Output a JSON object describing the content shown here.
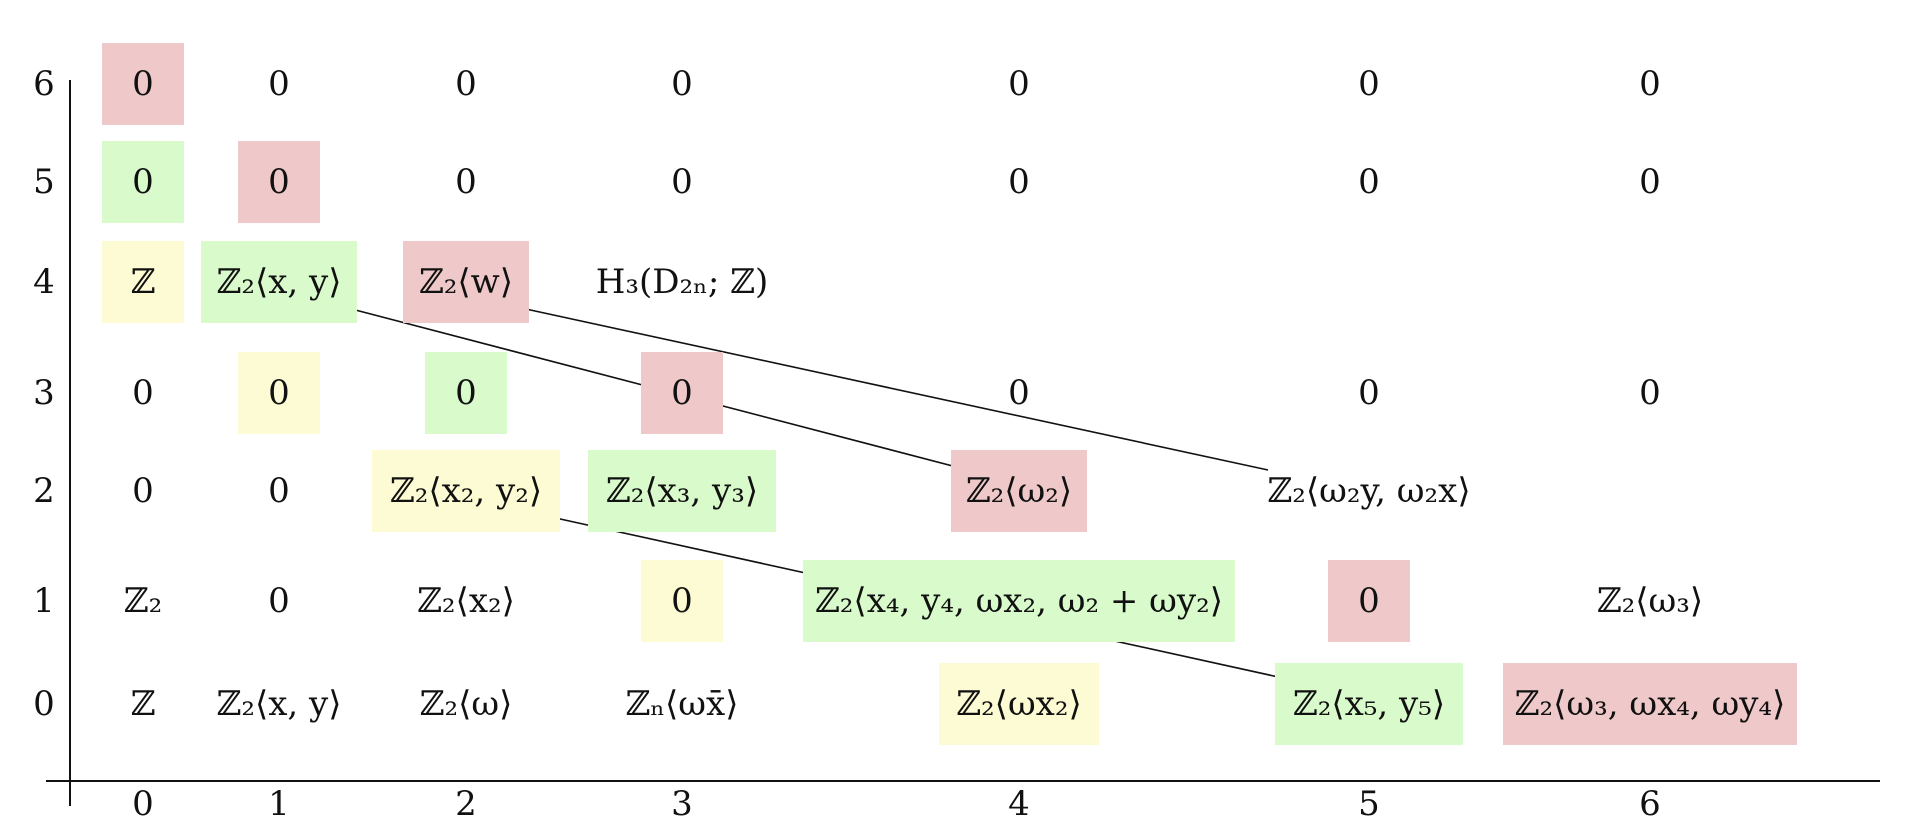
{
  "axes": {
    "row_labels": [
      "0",
      "1",
      "2",
      "3",
      "4",
      "5",
      "6"
    ],
    "col_labels": [
      "0",
      "1",
      "2",
      "3",
      "4",
      "5",
      "6"
    ]
  },
  "colors": {
    "red": "#efc9c9",
    "green": "#d9fbcc",
    "yellow": "#fdfbd3"
  },
  "entries": [
    {
      "row": 6,
      "col": 0,
      "text": "0",
      "color": "red"
    },
    {
      "row": 6,
      "col": 1,
      "text": "0",
      "color": "none"
    },
    {
      "row": 6,
      "col": 2,
      "text": "0",
      "color": "none"
    },
    {
      "row": 6,
      "col": 3,
      "text": "0",
      "color": "none"
    },
    {
      "row": 6,
      "col": 4,
      "text": "0",
      "color": "none"
    },
    {
      "row": 6,
      "col": 5,
      "text": "0",
      "color": "none"
    },
    {
      "row": 6,
      "col": 6,
      "text": "0",
      "color": "none"
    },
    {
      "row": 5,
      "col": 0,
      "text": "0",
      "color": "green"
    },
    {
      "row": 5,
      "col": 1,
      "text": "0",
      "color": "red"
    },
    {
      "row": 5,
      "col": 2,
      "text": "0",
      "color": "none"
    },
    {
      "row": 5,
      "col": 3,
      "text": "0",
      "color": "none"
    },
    {
      "row": 5,
      "col": 4,
      "text": "0",
      "color": "none"
    },
    {
      "row": 5,
      "col": 5,
      "text": "0",
      "color": "none"
    },
    {
      "row": 5,
      "col": 6,
      "text": "0",
      "color": "none"
    },
    {
      "row": 4,
      "col": 0,
      "text": "ℤ",
      "color": "yellow"
    },
    {
      "row": 4,
      "col": 1,
      "text": "ℤ₂⟨x, y⟩",
      "color": "green"
    },
    {
      "row": 4,
      "col": 2,
      "text": "ℤ₂⟨w⟩",
      "color": "red"
    },
    {
      "row": 4,
      "col": 3,
      "text": "H₃(D₂ₙ; ℤ)",
      "color": "none"
    },
    {
      "row": 3,
      "col": 0,
      "text": "0",
      "color": "none"
    },
    {
      "row": 3,
      "col": 1,
      "text": "0",
      "color": "yellow"
    },
    {
      "row": 3,
      "col": 2,
      "text": "0",
      "color": "green"
    },
    {
      "row": 3,
      "col": 3,
      "text": "0",
      "color": "red"
    },
    {
      "row": 3,
      "col": 4,
      "text": "0",
      "color": "none"
    },
    {
      "row": 3,
      "col": 5,
      "text": "0",
      "color": "none"
    },
    {
      "row": 3,
      "col": 6,
      "text": "0",
      "color": "none"
    },
    {
      "row": 2,
      "col": 0,
      "text": "0",
      "color": "none"
    },
    {
      "row": 2,
      "col": 1,
      "text": "0",
      "color": "none"
    },
    {
      "row": 2,
      "col": 2,
      "text": "ℤ₂⟨x₂, y₂⟩",
      "color": "yellow"
    },
    {
      "row": 2,
      "col": 3,
      "text": "ℤ₂⟨x₃, y₃⟩",
      "color": "green"
    },
    {
      "row": 2,
      "col": 4,
      "text": "ℤ₂⟨ω₂⟩",
      "color": "red"
    },
    {
      "row": 2,
      "col": 5,
      "text": "ℤ₂⟨ω₂y, ω₂x⟩",
      "color": "none"
    },
    {
      "row": 1,
      "col": 0,
      "text": "ℤ₂",
      "color": "none"
    },
    {
      "row": 1,
      "col": 1,
      "text": "0",
      "color": "none"
    },
    {
      "row": 1,
      "col": 2,
      "text": "ℤ₂⟨x₂⟩",
      "color": "none"
    },
    {
      "row": 1,
      "col": 3,
      "text": "0",
      "color": "yellow"
    },
    {
      "row": 1,
      "col": 4,
      "text": "ℤ₂⟨x₄, y₄, ωx₂, ω₂ + ωy₂⟩",
      "color": "green"
    },
    {
      "row": 1,
      "col": 5,
      "text": "0",
      "color": "red"
    },
    {
      "row": 1,
      "col": 6,
      "text": "ℤ₂⟨ω₃⟩",
      "color": "none"
    },
    {
      "row": 0,
      "col": 0,
      "text": "ℤ",
      "color": "none"
    },
    {
      "row": 0,
      "col": 1,
      "text": "ℤ₂⟨x, y⟩",
      "color": "none"
    },
    {
      "row": 0,
      "col": 2,
      "text": "ℤ₂⟨ω⟩",
      "color": "none"
    },
    {
      "row": 0,
      "col": 3,
      "text": "ℤₙ⟨ωx̄⟩",
      "color": "none"
    },
    {
      "row": 0,
      "col": 4,
      "text": "ℤ₂⟨ωx₂⟩",
      "color": "yellow"
    },
    {
      "row": 0,
      "col": 5,
      "text": "ℤ₂⟨x₅, y₅⟩",
      "color": "green"
    },
    {
      "row": 0,
      "col": 6,
      "text": "ℤ₂⟨ω₃, ωx₄, ωy₄⟩",
      "color": "red"
    }
  ],
  "arrows": [
    {
      "from": {
        "row": 2,
        "col": 4
      },
      "to": {
        "row": 4,
        "col": 1
      }
    },
    {
      "from": {
        "row": 2,
        "col": 5
      },
      "to": {
        "row": 4,
        "col": 2
      }
    },
    {
      "from": {
        "row": 0,
        "col": 5
      },
      "to": {
        "row": 2,
        "col": 2
      }
    }
  ]
}
